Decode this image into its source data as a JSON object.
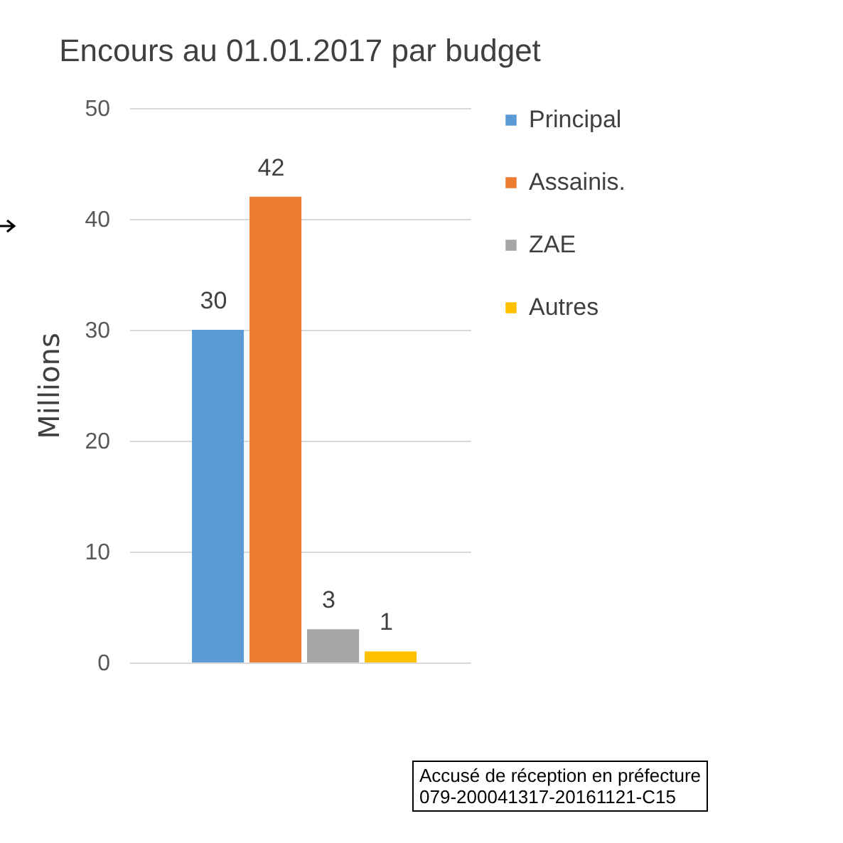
{
  "chart_data": {
    "type": "bar",
    "title": "Encours au 01.01.2017 par budget",
    "ylabel": "Millions",
    "categories": [
      null
    ],
    "series": [
      {
        "name": "Principal",
        "color": "#5b9bd5",
        "values": [
          30
        ]
      },
      {
        "name": "Assainis.",
        "color": "#ed7d31",
        "values": [
          42
        ]
      },
      {
        "name": "ZAE",
        "color": "#a5a5a5",
        "values": [
          3
        ]
      },
      {
        "name": "Autres",
        "color": "#ffc000",
        "values": [
          1
        ]
      }
    ],
    "ylim": [
      0,
      50
    ],
    "yticks": [
      0,
      10,
      20,
      30,
      40,
      50
    ],
    "grid": "y",
    "legend": "right",
    "data_labels": true,
    "annotations": [
      "Accusé de réception en préfecture",
      "079-200041317-20161121-C15"
    ]
  }
}
